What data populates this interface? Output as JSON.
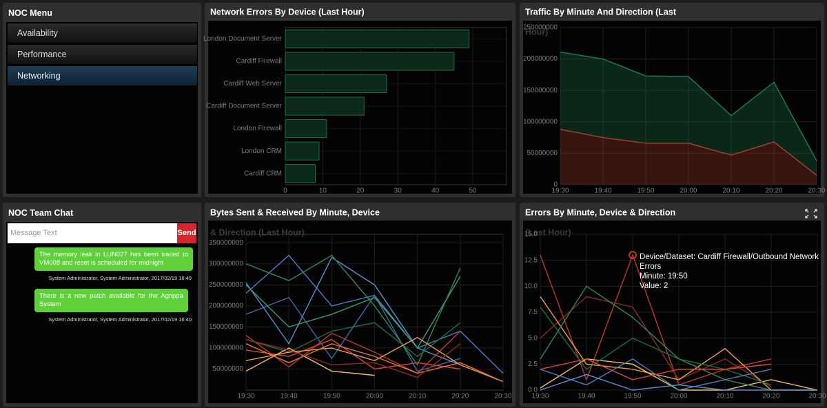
{
  "menu": {
    "title": "NOC Menu",
    "items": [
      "Availability",
      "Performance",
      "Networking"
    ]
  },
  "chat": {
    "title": "NOC Team Chat",
    "placeholder": "Message Text",
    "send": "Send",
    "messages": [
      {
        "text": "The memory leak in LUN027 has been traced to VM008 and reset is scheduled for midnight",
        "meta": "System Administrator, System Administrator, 2017/02/19 16:49"
      },
      {
        "text": "There is a new patch available for the Agrippa System",
        "meta": "System Administrator, System Administrator, 2017/02/19 16:40"
      }
    ]
  },
  "chart_data": [
    {
      "type": "bar",
      "orientation": "horizontal",
      "title": "Network Errors By Device (Last Hour)",
      "categories": [
        "London Document Server",
        "Cardiff Firewall",
        "Cardiff Web Server",
        "Cardiff Document Server",
        "London Firewall",
        "London CRM",
        "Cardiff CRM"
      ],
      "values": [
        49,
        45,
        27,
        21,
        11,
        9,
        8
      ],
      "color": "#1f6e40",
      "xlim": [
        0,
        59
      ],
      "xticks": [
        0,
        10,
        20,
        30,
        40,
        50
      ],
      "grid": true
    },
    {
      "type": "area",
      "stacked": true,
      "title": [
        "Traffic By Minute And Direction (Last",
        "Hour)"
      ],
      "categories": [
        "19:30",
        "19:40",
        "19:50",
        "20:00",
        "20:10",
        "20:20",
        "20:30"
      ],
      "series": [
        {
          "color": "#b03a2e",
          "values": [
            88000000,
            75000000,
            66000000,
            66000000,
            47000000,
            68000000,
            15000000
          ]
        },
        {
          "color": "#1f7a47",
          "values": [
            123000000,
            125000000,
            107000000,
            106000000,
            63000000,
            95000000,
            23000000
          ]
        }
      ],
      "ylim": [
        0,
        250000000
      ],
      "yticks": [
        0,
        50000000,
        100000000,
        150000000,
        200000000,
        250000000
      ],
      "grid": true
    },
    {
      "type": "line",
      "title": [
        "Bytes Sent & Received By Minute, Device",
        "& Direction (Last Hour)"
      ],
      "categories": [
        "19:30",
        "19:40",
        "19:50",
        "20:00",
        "20:10",
        "20:20",
        "20:30"
      ],
      "series": [
        {
          "color": "#4a7fc1",
          "values": [
            230000000,
            320000000,
            200000000,
            225000000,
            100000000,
            140000000,
            40000000
          ]
        },
        {
          "color": "#3d6aa8",
          "values": [
            180000000,
            220000000,
            75000000,
            225000000,
            45000000,
            75000000,
            null
          ]
        },
        {
          "color": "#5b8fd0",
          "values": [
            255000000,
            110000000,
            315000000,
            250000000,
            100000000,
            60000000,
            null
          ]
        },
        {
          "color": "#2e8b57",
          "values": [
            300000000,
            260000000,
            320000000,
            200000000,
            60000000,
            290000000,
            null
          ]
        },
        {
          "color": "#3aa06a",
          "values": [
            250000000,
            150000000,
            180000000,
            220000000,
            100000000,
            270000000,
            null
          ]
        },
        {
          "color": "#1f6e46",
          "values": [
            120000000,
            90000000,
            140000000,
            160000000,
            80000000,
            160000000,
            null
          ]
        },
        {
          "color": "#c0392b",
          "values": [
            130000000,
            55000000,
            135000000,
            90000000,
            40000000,
            140000000,
            null
          ]
        },
        {
          "color": "#e0463a",
          "values": [
            95000000,
            80000000,
            120000000,
            50000000,
            65000000,
            50000000,
            null
          ]
        },
        {
          "color": "#f0a040",
          "values": [
            70000000,
            90000000,
            100000000,
            70000000,
            125000000,
            60000000,
            20000000
          ]
        },
        {
          "color": "#f7c05a",
          "values": [
            45000000,
            100000000,
            45000000,
            35000000,
            null,
            null,
            null
          ]
        },
        {
          "color": "#e8763a",
          "values": [
            110000000,
            65000000,
            110000000,
            80000000,
            40000000,
            65000000,
            20000000
          ]
        },
        {
          "color": "#8e2a22",
          "values": [
            120000000,
            95000000,
            60000000,
            65000000,
            30000000,
            110000000,
            null
          ]
        }
      ],
      "ylim": [
        0,
        370000000
      ],
      "yticks": [
        50000000,
        100000000,
        150000000,
        200000000,
        250000000,
        300000000,
        350000000
      ],
      "grid": true
    },
    {
      "type": "line",
      "title": [
        "Errors By Minute, Device & Direction",
        "(Last Hour)"
      ],
      "categories": [
        "19:30",
        "19:40",
        "19:50",
        "20:00",
        "20:10",
        "20:20",
        "20:30"
      ],
      "series": [
        {
          "color": "#c0392b",
          "values": [
            13,
            1,
            13,
            0.5,
            2,
            3,
            null
          ]
        },
        {
          "color": "#8e2a22",
          "values": [
            5,
            9,
            8,
            1,
            3,
            0.3,
            null
          ]
        },
        {
          "color": "#f0a040",
          "values": [
            9,
            2.5,
            2,
            1,
            4,
            0,
            0
          ]
        },
        {
          "color": "#f7c05a",
          "values": [
            0.2,
            3,
            2.5,
            0,
            0,
            1,
            0
          ]
        },
        {
          "color": "#2e8b57",
          "values": [
            3,
            10,
            7,
            3,
            1,
            0,
            0
          ]
        },
        {
          "color": "#1f6e46",
          "values": [
            8,
            2,
            5,
            3,
            2,
            0.5,
            null
          ]
        },
        {
          "color": "#4a7fc1",
          "values": [
            2,
            0.5,
            3,
            0,
            1,
            2,
            null
          ]
        },
        {
          "color": "#5b8fd0",
          "values": [
            0,
            1.5,
            0,
            0.5,
            0,
            0,
            0
          ]
        },
        {
          "color": "#e0463a",
          "values": [
            2,
            3,
            1,
            2,
            2,
            2.5,
            null
          ]
        }
      ],
      "ylim": [
        0,
        15
      ],
      "yticks": [
        {
          "value": 0,
          "label": "0.0"
        },
        2.5,
        {
          "value": 5,
          "label": "5.0"
        },
        7.5,
        {
          "value": 10,
          "label": "10.0"
        },
        12.5,
        {
          "value": 15,
          "label": "15.0"
        }
      ],
      "grid": true,
      "tooltip": [
        "Device/Dataset: Cardiff Firewall/Outbound Network",
        "Errors",
        "Minute: 19:50",
        "Value: 2"
      ]
    }
  ]
}
